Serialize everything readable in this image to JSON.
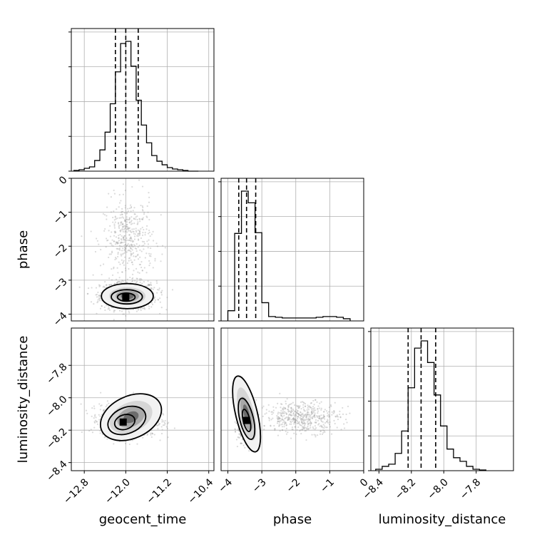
{
  "chart_data": {
    "type": "corner",
    "parameters": [
      "geocent_time",
      "phase",
      "luminosity_distance"
    ],
    "axis_labels": {
      "geocent_time": "geocent_time",
      "phase": "phase",
      "luminosity_distance": "luminosity_distance"
    },
    "ranges": {
      "geocent_time": [
        -13.05,
        -10.3
      ],
      "phase": [
        -4.2,
        0
      ],
      "luminosity_distance": [
        -8.45,
        -7.57
      ]
    },
    "ticks": {
      "geocent_time": [
        {
          "value": -12.8,
          "label": "−12.8"
        },
        {
          "value": -12.0,
          "label": "−12.0"
        },
        {
          "value": -11.2,
          "label": "−11.2"
        },
        {
          "value": -10.4,
          "label": "−10.4"
        }
      ],
      "phase": [
        {
          "value": -4,
          "label": "−4"
        },
        {
          "value": -3,
          "label": "−3"
        },
        {
          "value": -2,
          "label": "−2"
        },
        {
          "value": -1,
          "label": "−1"
        },
        {
          "value": 0,
          "label": "0"
        }
      ],
      "luminosity_distance": [
        {
          "value": -8.4,
          "label": "−8.4"
        },
        {
          "value": -8.2,
          "label": "−8.2"
        },
        {
          "value": -8.0,
          "label": "−8.0"
        },
        {
          "value": -7.8,
          "label": "−7.8"
        }
      ]
    },
    "quantiles": {
      "geocent_time": [
        -12.2,
        -12.0,
        -11.76
      ],
      "phase": [
        -3.68,
        -3.45,
        -3.18
      ],
      "luminosity_distance": [
        -8.22,
        -8.14,
        -8.05
      ]
    },
    "histograms": {
      "geocent_time": {
        "bin_edges": [
          -13.0,
          -12.9,
          -12.8,
          -12.7,
          -12.6,
          -12.5,
          -12.4,
          -12.3,
          -12.2,
          -12.1,
          -12.0,
          -11.9,
          -11.8,
          -11.7,
          -11.6,
          -11.5,
          -11.4,
          -11.3,
          -11.2,
          -11.1,
          -11.0,
          -10.9,
          -10.8,
          -10.7,
          -10.6
        ],
        "counts": [
          1,
          2,
          4,
          6,
          15,
          30,
          55,
          95,
          140,
          180,
          183,
          148,
          100,
          65,
          40,
          22,
          14,
          9,
          5,
          3,
          2,
          1,
          0,
          0
        ]
      },
      "phase": {
        "bin_edges": [
          -4.0,
          -3.8,
          -3.6,
          -3.4,
          -3.2,
          -3.0,
          -2.8,
          -2.6,
          -2.4,
          -2.2,
          -2.0,
          -1.8,
          -1.6,
          -1.4,
          -1.2,
          -1.0,
          -0.8,
          -0.6,
          -0.4
        ],
        "counts": [
          14,
          120,
          178,
          162,
          121,
          25,
          6,
          5,
          4,
          4,
          4,
          4,
          4,
          5,
          6,
          6,
          5,
          3
        ]
      },
      "luminosity_distance": {
        "bin_edges": [
          -8.42,
          -8.38,
          -8.34,
          -8.3,
          -8.26,
          -8.22,
          -8.18,
          -8.14,
          -8.1,
          -8.06,
          -8.02,
          -7.98,
          -7.94,
          -7.9,
          -7.86,
          -7.82,
          -7.78,
          -7.74
        ],
        "counts": [
          2,
          6,
          9,
          24,
          55,
          115,
          170,
          180,
          150,
          105,
          62,
          30,
          18,
          13,
          6,
          2,
          1
        ]
      }
    },
    "joint": [
      {
        "x": "geocent_time",
        "y": "phase",
        "scatter": {
          "main": {
            "center": [
              -11.95,
              -3.45
            ],
            "spread": [
              0.45,
              0.35
            ],
            "n": 900
          },
          "tail": {
            "center": [
              -11.95,
              -1.8
            ],
            "spread": [
              0.4,
              1.0
            ],
            "n": 450
          }
        },
        "mode": [
          -12.0,
          -3.5
        ],
        "contours": [
          {
            "center": [
              -11.97,
              -3.47
            ],
            "radii": [
              0.5,
              0.37
            ]
          },
          {
            "center": [
              -11.98,
              -3.49
            ],
            "radii": [
              0.3,
              0.21
            ]
          },
          {
            "center": [
              -11.99,
              -3.5
            ],
            "radii": [
              0.17,
              0.12
            ]
          }
        ]
      },
      {
        "x": "geocent_time",
        "y": "luminosity_distance",
        "scatter": {
          "main": {
            "center": [
              -11.95,
              -8.14
            ],
            "spread": [
              0.45,
              0.08
            ],
            "n": 1300
          }
        },
        "mode": [
          -12.05,
          -8.15
        ],
        "contours": [
          {
            "center": [
              -11.9,
              -8.12
            ],
            "radii": [
              0.62,
              0.13
            ],
            "tilt": 0.55
          },
          {
            "center": [
              -11.98,
              -8.14
            ],
            "radii": [
              0.38,
              0.08
            ],
            "tilt": 0.5
          },
          {
            "center": [
              -12.02,
              -8.15
            ],
            "radii": [
              0.2,
              0.045
            ],
            "tilt": 0.4
          }
        ]
      },
      {
        "x": "phase",
        "y": "luminosity_distance",
        "scatter": {
          "main": {
            "center": [
              -3.45,
              -8.14
            ],
            "spread": [
              0.2,
              0.1
            ],
            "n": 900
          },
          "tail": {
            "center": [
              -1.8,
              -8.12
            ],
            "spread": [
              0.9,
              0.08
            ],
            "n": 500
          }
        },
        "mode": [
          -3.45,
          -8.14
        ],
        "contours": [
          {
            "center": [
              -3.45,
              -8.1
            ],
            "radii": [
              0.32,
              0.24
            ],
            "tilt": 0.3
          },
          {
            "center": [
              -3.45,
              -8.13
            ],
            "radii": [
              0.2,
              0.13
            ],
            "tilt": 0.3
          },
          {
            "center": [
              -3.45,
              -8.14
            ],
            "radii": [
              0.1,
              0.07
            ],
            "tilt": 0.3
          }
        ]
      }
    ],
    "grid": true,
    "line_color": "#000000",
    "scatter_color": "#999999"
  }
}
